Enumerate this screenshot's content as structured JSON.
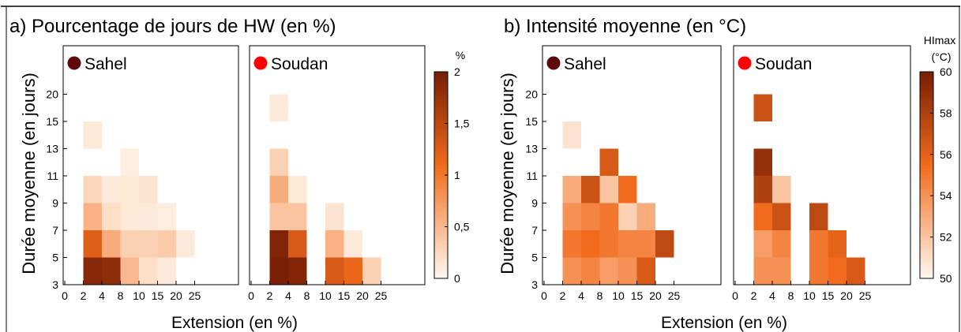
{
  "chart_data": [
    {
      "type": "heatmap",
      "title": "a) Pourcentage de jours de HW (en %)",
      "xlabel": "Extension (en %)",
      "ylabel": "Durée moyenne (en jours)",
      "y_ticks": [
        "3",
        "5",
        "7",
        "9",
        "11",
        "13",
        "15",
        "20"
      ],
      "colorbar": {
        "title": "%",
        "min": 0,
        "max": 2,
        "ticks": [
          "0",
          "0,5",
          "1",
          "1,5",
          "2"
        ],
        "tick_values": [
          0,
          0.5,
          1,
          1.5,
          2
        ],
        "color_low": "#fff7ed",
        "color_mid": "#f26b1c",
        "color_high": "#7a2005"
      },
      "panels": [
        {
          "region": "Sahel",
          "marker_color": "#5c0a0a",
          "x_ticks": [
            "0",
            "2",
            "4",
            "8",
            "10",
            "15",
            "20",
            "25"
          ],
          "cells": [
            {
              "x": "2-4",
              "y": "3-5",
              "value": 1.9
            },
            {
              "x": "4-8",
              "y": "3-5",
              "value": 1.85
            },
            {
              "x": "8-10",
              "y": "3-5",
              "value": 0.5
            },
            {
              "x": "10-15",
              "y": "3-5",
              "value": 0.2
            },
            {
              "x": "15-20",
              "y": "3-5",
              "value": 0.1
            },
            {
              "x": "2-4",
              "y": "5-7",
              "value": 1.25
            },
            {
              "x": "4-8",
              "y": "5-7",
              "value": 0.6
            },
            {
              "x": "8-10",
              "y": "5-7",
              "value": 0.3
            },
            {
              "x": "10-15",
              "y": "5-7",
              "value": 0.3
            },
            {
              "x": "15-20",
              "y": "5-7",
              "value": 0.35
            },
            {
              "x": "20-25",
              "y": "5-7",
              "value": 0.1
            },
            {
              "x": "2-4",
              "y": "7-9",
              "value": 0.55
            },
            {
              "x": "4-8",
              "y": "7-9",
              "value": 0.2
            },
            {
              "x": "8-10",
              "y": "7-9",
              "value": 0.12
            },
            {
              "x": "10-15",
              "y": "7-9",
              "value": 0.1
            },
            {
              "x": "15-20",
              "y": "7-9",
              "value": 0.08
            },
            {
              "x": "2-4",
              "y": "9-11",
              "value": 0.25
            },
            {
              "x": "4-8",
              "y": "9-11",
              "value": 0.1
            },
            {
              "x": "8-10",
              "y": "9-11",
              "value": 0.12
            },
            {
              "x": "10-15",
              "y": "9-11",
              "value": 0.15
            },
            {
              "x": "8-10",
              "y": "11-13",
              "value": 0.07
            },
            {
              "x": "2-4",
              "y": "13-15",
              "value": 0.12
            }
          ]
        },
        {
          "region": "Soudan",
          "marker_color": "#ff0000",
          "x_ticks": [
            "0",
            "2",
            "4",
            "8",
            "10",
            "15",
            "20",
            "25"
          ],
          "cells": [
            {
              "x": "2-4",
              "y": "3-5",
              "value": 2.0
            },
            {
              "x": "4-8",
              "y": "3-5",
              "value": 1.95
            },
            {
              "x": "10-15",
              "y": "3-5",
              "value": 1.3
            },
            {
              "x": "15-20",
              "y": "3-5",
              "value": 1.15
            },
            {
              "x": "20-25",
              "y": "3-5",
              "value": 0.3
            },
            {
              "x": "2-4",
              "y": "5-7",
              "value": 1.95
            },
            {
              "x": "4-8",
              "y": "5-7",
              "value": 1.3
            },
            {
              "x": "10-15",
              "y": "5-7",
              "value": 0.55
            },
            {
              "x": "15-20",
              "y": "5-7",
              "value": 0.1
            },
            {
              "x": "2-4",
              "y": "7-9",
              "value": 0.4
            },
            {
              "x": "4-8",
              "y": "7-9",
              "value": 0.4
            },
            {
              "x": "10-15",
              "y": "7-9",
              "value": 0.15
            },
            {
              "x": "2-4",
              "y": "9-11",
              "value": 0.6
            },
            {
              "x": "4-8",
              "y": "9-11",
              "value": 0.12
            },
            {
              "x": "2-4",
              "y": "11-13",
              "value": 0.3
            },
            {
              "x": "2-4",
              "y": "15-20",
              "value": 0.1
            }
          ]
        }
      ]
    },
    {
      "type": "heatmap",
      "title": "b) Intensité moyenne (en °C)",
      "xlabel": "Extension (en %)",
      "ylabel": "Durée moyenne (en jours)",
      "y_ticks": [
        "3",
        "5",
        "7",
        "9",
        "11",
        "13",
        "15",
        "20"
      ],
      "colorbar": {
        "title_line1": "HImax",
        "title_line2": "(°C)",
        "min": 50,
        "max": 60,
        "ticks": [
          "50",
          "52",
          "54",
          "56",
          "58",
          "60"
        ],
        "tick_values": [
          50,
          52,
          54,
          56,
          58,
          60
        ],
        "color_low": "#fff7ed",
        "color_mid": "#f26b1c",
        "color_high": "#7a2005"
      },
      "panels": [
        {
          "region": "Sahel",
          "marker_color": "#5c0a0a",
          "x_ticks": [
            "0",
            "2",
            "4",
            "8",
            "10",
            "15",
            "20",
            "25"
          ],
          "cells": [
            {
              "x": "2-4",
              "y": "3-5",
              "value": 54
            },
            {
              "x": "4-8",
              "y": "3-5",
              "value": 54.5
            },
            {
              "x": "8-10",
              "y": "3-5",
              "value": 53.5
            },
            {
              "x": "10-15",
              "y": "3-5",
              "value": 54
            },
            {
              "x": "15-20",
              "y": "3-5",
              "value": 56.5
            },
            {
              "x": "2-4",
              "y": "5-7",
              "value": 55
            },
            {
              "x": "4-8",
              "y": "5-7",
              "value": 55.5
            },
            {
              "x": "8-10",
              "y": "5-7",
              "value": 55
            },
            {
              "x": "10-15",
              "y": "5-7",
              "value": 54.5
            },
            {
              "x": "15-20",
              "y": "5-7",
              "value": 54.5
            },
            {
              "x": "20-25",
              "y": "5-7",
              "value": 57.5
            },
            {
              "x": "2-4",
              "y": "7-9",
              "value": 54
            },
            {
              "x": "4-8",
              "y": "7-9",
              "value": 54.5
            },
            {
              "x": "8-10",
              "y": "7-9",
              "value": 55
            },
            {
              "x": "10-15",
              "y": "7-9",
              "value": 51.5
            },
            {
              "x": "15-20",
              "y": "7-9",
              "value": 53
            },
            {
              "x": "2-4",
              "y": "9-11",
              "value": 53
            },
            {
              "x": "4-8",
              "y": "9-11",
              "value": 57
            },
            {
              "x": "8-10",
              "y": "9-11",
              "value": 52
            },
            {
              "x": "10-15",
              "y": "9-11",
              "value": 55.5
            },
            {
              "x": "8-10",
              "y": "11-13",
              "value": 56.5
            },
            {
              "x": "2-4",
              "y": "13-15",
              "value": 50.8
            }
          ]
        },
        {
          "region": "Soudan",
          "marker_color": "#ff0000",
          "x_ticks": [
            "0",
            "2",
            "4",
            "8",
            "10",
            "15",
            "20",
            "25"
          ],
          "cells": [
            {
              "x": "2-4",
              "y": "3-5",
              "value": 54
            },
            {
              "x": "4-8",
              "y": "3-5",
              "value": 54
            },
            {
              "x": "10-15",
              "y": "3-5",
              "value": 55
            },
            {
              "x": "15-20",
              "y": "3-5",
              "value": 55.5
            },
            {
              "x": "20-25",
              "y": "3-5",
              "value": 56.5
            },
            {
              "x": "2-4",
              "y": "5-7",
              "value": 53.5
            },
            {
              "x": "4-8",
              "y": "5-7",
              "value": 54.5
            },
            {
              "x": "10-15",
              "y": "5-7",
              "value": 55
            },
            {
              "x": "15-20",
              "y": "5-7",
              "value": 56
            },
            {
              "x": "2-4",
              "y": "7-9",
              "value": 55.5
            },
            {
              "x": "4-8",
              "y": "7-9",
              "value": 57
            },
            {
              "x": "10-15",
              "y": "7-9",
              "value": 57.5
            },
            {
              "x": "2-4",
              "y": "9-11",
              "value": 58
            },
            {
              "x": "4-8",
              "y": "9-11",
              "value": 52
            },
            {
              "x": "2-4",
              "y": "11-13",
              "value": 59
            },
            {
              "x": "2-4",
              "y": "15-20",
              "value": 57
            }
          ]
        }
      ]
    }
  ]
}
